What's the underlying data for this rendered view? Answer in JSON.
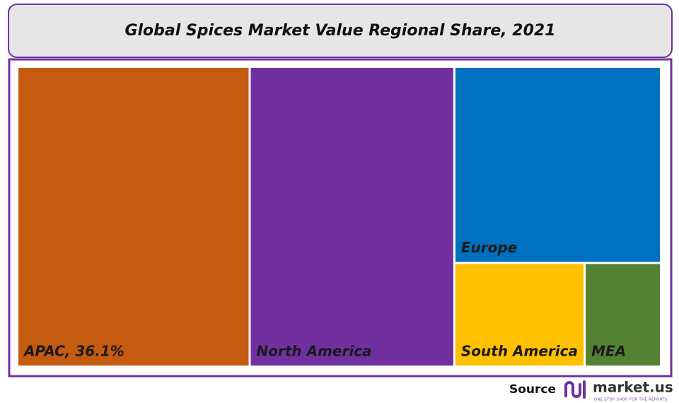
{
  "chart_data": {
    "type": "treemap",
    "title": "Global Spices Market Value Regional Share, 2021",
    "categories": [
      "APAC, 36.1%",
      "North America",
      "Europe",
      "South America",
      "MEA"
    ],
    "values": [
      36.1,
      31.8,
      21.0,
      7.0,
      4.1
    ],
    "colors": [
      "#c55a11",
      "#7030a0",
      "#0070c0",
      "#ffc000",
      "#548235"
    ],
    "source": "Source",
    "logo": "market.us",
    "tagline": "ONE STOP SHOP FOR THE REPORTS"
  }
}
